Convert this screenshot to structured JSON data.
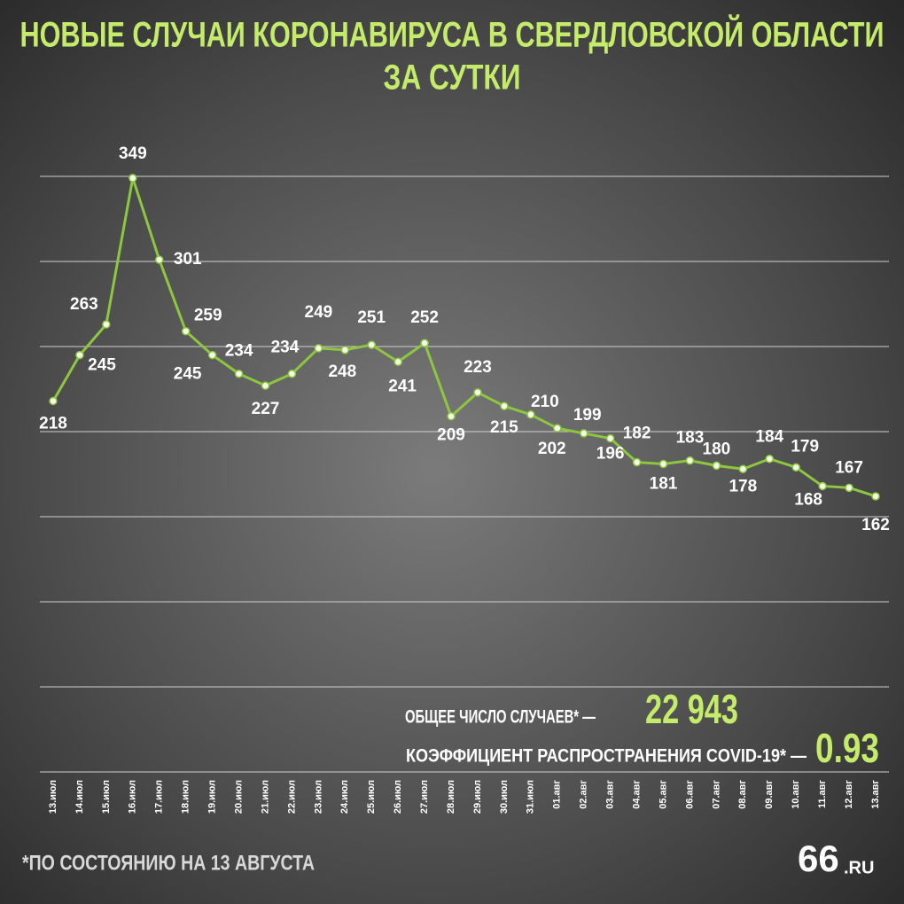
{
  "chart_data": {
    "type": "line",
    "title": [
      "НОВЫЕ СЛУЧАИ КОРОНАВИРУСА В СВЕРДЛОВСКОЙ ОБЛАСТИ",
      "ЗА СУТКИ"
    ],
    "categories": [
      "13.июл",
      "14.июл",
      "15.июл",
      "16.июл",
      "17.июл",
      "18.июл",
      "19.июл",
      "20.июл",
      "21.июл",
      "22.июл",
      "23.июл",
      "24.июл",
      "25.июл",
      "26.июл",
      "27.июл",
      "28.июл",
      "29.июл",
      "30.июл",
      "31.июл",
      "01.авг",
      "02.авг",
      "03.авг",
      "04.авг",
      "05.авг",
      "06.авг",
      "07.авг",
      "08.авг",
      "09.авг",
      "10.авг",
      "11.авг",
      "12.авг",
      "13.авг"
    ],
    "values": [
      218,
      245,
      263,
      349,
      301,
      259,
      245,
      234,
      227,
      234,
      249,
      248,
      251,
      241,
      252,
      209,
      223,
      215,
      210,
      202,
      199,
      196,
      182,
      181,
      183,
      180,
      178,
      184,
      179,
      168,
      167,
      162
    ],
    "color": "#8dc63f",
    "ylim": [
      0,
      350
    ],
    "yticks": [
      0,
      50,
      100,
      150,
      200,
      250,
      300,
      350
    ],
    "grid": true,
    "stats": [
      {
        "label": "ОБЩЕЕ ЧИСЛО СЛУЧАЕВ* —",
        "value": "22 943"
      },
      {
        "label": "КОЭФФИЦИЕНТ РАСПРОСТРАНЕНИЯ COVID-19* —",
        "value": "0.93"
      }
    ],
    "footnote": "*ПО СОСТОЯНИЮ НА 13 АВГУСТА",
    "logo": [
      "66",
      ".RU"
    ]
  }
}
